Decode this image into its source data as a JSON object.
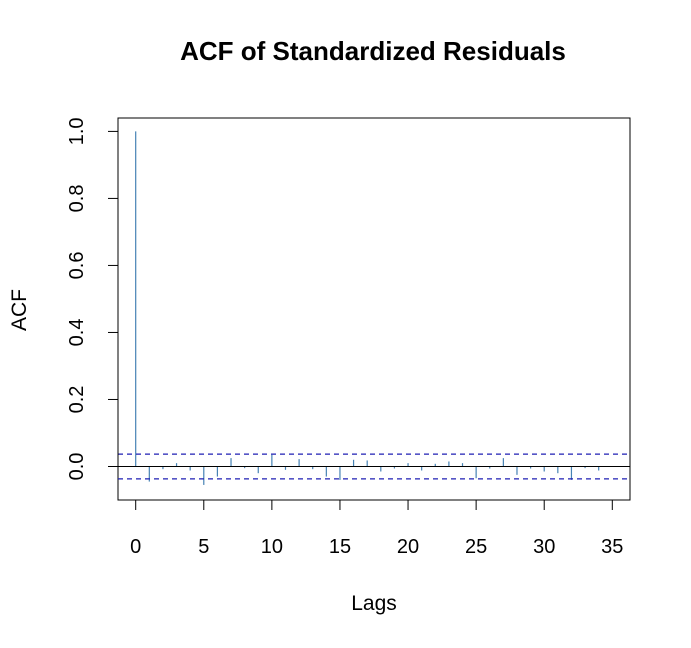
{
  "chart_data": {
    "type": "bar",
    "title": "ACF of Standardized Residuals",
    "xlabel": "Lags",
    "ylabel": "ACF",
    "xlim": [
      -1.3,
      36.3
    ],
    "ylim": [
      -0.1,
      1.04
    ],
    "x_ticks": [
      0,
      5,
      10,
      15,
      20,
      25,
      30,
      35
    ],
    "y_ticks": [
      0.0,
      0.2,
      0.4,
      0.6,
      0.8,
      1.0
    ],
    "y_tick_labels": [
      "0.0",
      "0.2",
      "0.4",
      "0.6",
      "0.8",
      "1.0"
    ],
    "x_tick_labels": [
      "0",
      "5",
      "10",
      "15",
      "20",
      "25",
      "30",
      "35"
    ],
    "lags": [
      0,
      1,
      2,
      3,
      4,
      5,
      6,
      7,
      8,
      9,
      10,
      11,
      12,
      13,
      14,
      15,
      16,
      17,
      18,
      19,
      20,
      21,
      22,
      23,
      24,
      25,
      26,
      27,
      28,
      29,
      30,
      31,
      32,
      33,
      34
    ],
    "acf": [
      1.0,
      -0.045,
      -0.008,
      0.01,
      -0.012,
      -0.055,
      -0.03,
      0.025,
      -0.005,
      -0.02,
      0.035,
      -0.01,
      0.022,
      -0.008,
      -0.03,
      -0.04,
      0.02,
      0.018,
      -0.015,
      -0.006,
      0.01,
      -0.012,
      0.008,
      0.015,
      0.01,
      -0.035,
      -0.006,
      0.025,
      -0.025,
      -0.006,
      -0.015,
      -0.02,
      -0.04,
      -0.005,
      -0.012
    ],
    "confidence_band": [
      -0.037,
      0.037
    ],
    "zero_line": 0,
    "grid": false,
    "colors": {
      "bars": "#4682b4",
      "confidence_band": "#1f1fb4",
      "axes": "#000000"
    }
  }
}
